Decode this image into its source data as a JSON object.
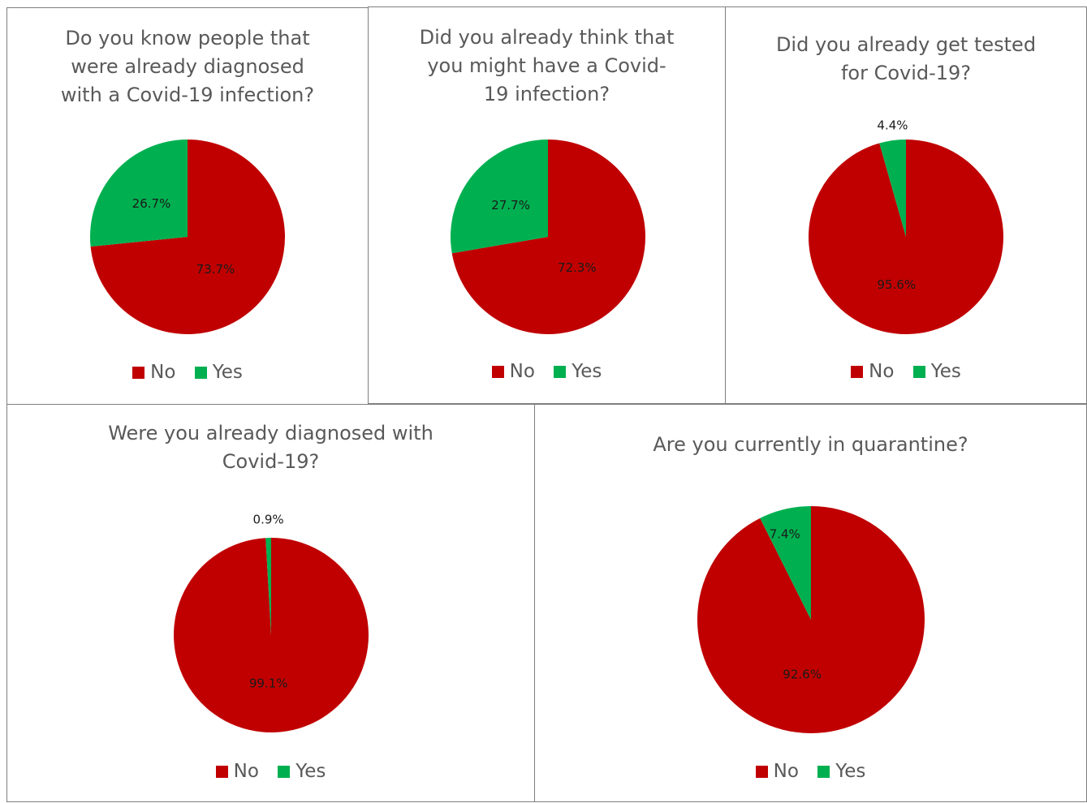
{
  "colors": {
    "No": "#c00000",
    "Yes": "#00b050"
  },
  "legend": {
    "no_label": "No",
    "yes_label": "Yes"
  },
  "chart_data": [
    {
      "type": "pie",
      "title": "Do you know people that\nwere already diagnosed\nwith a Covid-19 infection?",
      "slices": [
        {
          "label": "No",
          "value": 73.7,
          "display": "73.7%"
        },
        {
          "label": "Yes",
          "value": 26.7,
          "display": "26.7%"
        }
      ],
      "legend": [
        "No",
        "Yes"
      ]
    },
    {
      "type": "pie",
      "title": "Did you already think that\nyou might have a Covid-\n19 infection?",
      "slices": [
        {
          "label": "No",
          "value": 72.3,
          "display": "72.3%"
        },
        {
          "label": "Yes",
          "value": 27.7,
          "display": "27.7%"
        }
      ],
      "legend": [
        "No",
        "Yes"
      ]
    },
    {
      "type": "pie",
      "title": "Did you already get tested\nfor Covid-19?",
      "slices": [
        {
          "label": "No",
          "value": 95.6,
          "display": "95.6%"
        },
        {
          "label": "Yes",
          "value": 4.4,
          "display": "4.4%"
        }
      ],
      "legend": [
        "No",
        "Yes"
      ]
    },
    {
      "type": "pie",
      "title": "Were you already diagnosed with\nCovid-19?",
      "slices": [
        {
          "label": "No",
          "value": 99.1,
          "display": "99.1%"
        },
        {
          "label": "Yes",
          "value": 0.9,
          "display": "0.9%"
        }
      ],
      "legend": [
        "No",
        "Yes"
      ]
    },
    {
      "type": "pie",
      "title": "Are you currently in quarantine?",
      "slices": [
        {
          "label": "No",
          "value": 92.6,
          "display": "92.6%"
        },
        {
          "label": "Yes",
          "value": 7.4,
          "display": "7.4%"
        }
      ],
      "legend": [
        "No",
        "Yes"
      ]
    }
  ]
}
